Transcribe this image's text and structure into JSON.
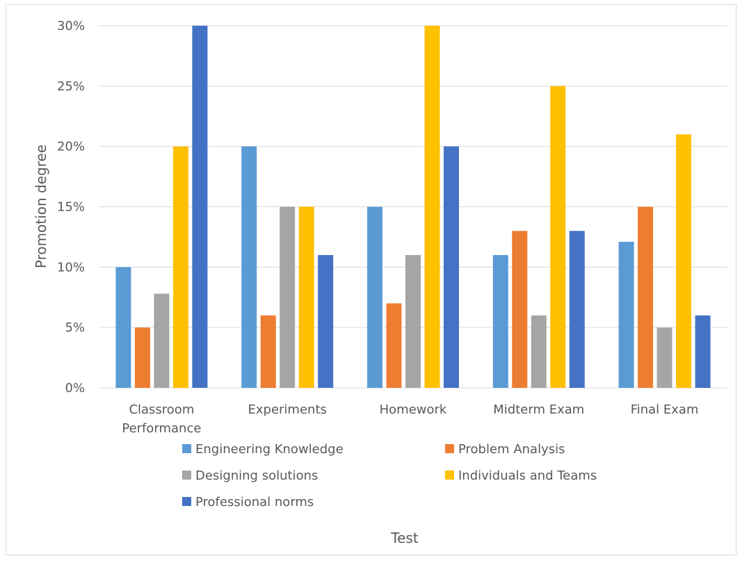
{
  "colors": {
    "series": [
      "#5B9BD5",
      "#ED7D31",
      "#A5A5A5",
      "#FFC000",
      "#4472C4"
    ],
    "grid": "#D9D9D9",
    "text": "#595959",
    "border": "#D9D9D9"
  },
  "chart_data": {
    "type": "bar",
    "title": "",
    "xlabel": "Test",
    "ylabel": "Promotion degree",
    "ylim": [
      0,
      30
    ],
    "yticks": [
      "0%",
      "5%",
      "10%",
      "15%",
      "20%",
      "25%",
      "30%"
    ],
    "ytick_values": [
      0,
      5,
      10,
      15,
      20,
      25,
      30
    ],
    "grid": true,
    "legend_position": "bottom",
    "categories": [
      [
        "Classroom",
        "Performance"
      ],
      [
        "Experiments"
      ],
      [
        "Homework"
      ],
      [
        "Midterm Exam"
      ],
      [
        "Final Exam"
      ]
    ],
    "series": [
      {
        "name": "Engineering Knowledge",
        "values": [
          10,
          20,
          15,
          11,
          12.1
        ]
      },
      {
        "name": "Problem Analysis",
        "values": [
          5,
          6,
          7,
          13,
          15
        ]
      },
      {
        "name": "Designing solutions",
        "values": [
          7.8,
          15,
          11,
          6,
          5
        ]
      },
      {
        "name": "Individuals and Teams",
        "values": [
          20,
          15,
          30,
          25,
          21
        ]
      },
      {
        "name": "Professional norms",
        "values": [
          30,
          11,
          20,
          13,
          6
        ]
      }
    ]
  }
}
